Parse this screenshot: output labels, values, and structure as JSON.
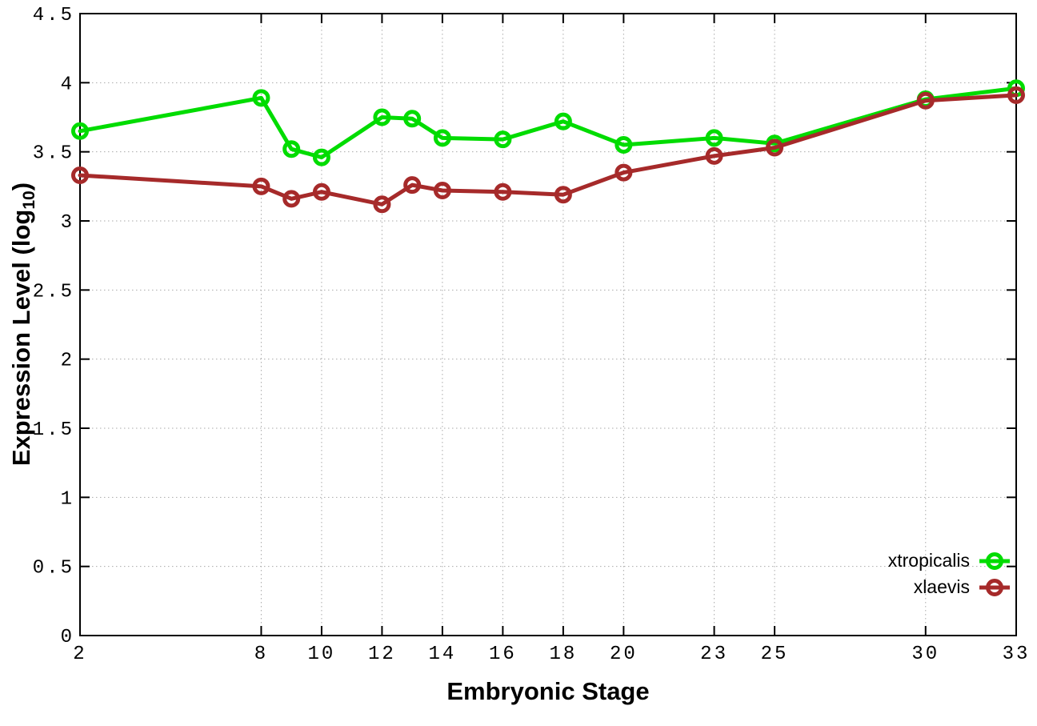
{
  "chart_data": {
    "type": "line",
    "title": "",
    "xlabel": "Embryonic Stage",
    "ylabel": "Expression Level (log10)",
    "ylabel_parts": {
      "main": "Expression Level (log",
      "sub": "10",
      "end": ")"
    },
    "xlim": [
      2,
      33
    ],
    "ylim": [
      0,
      4.5
    ],
    "grid": true,
    "legend_position": "inside-bottom-right",
    "x": [
      2,
      8,
      9,
      10,
      12,
      13,
      14,
      16,
      18,
      20,
      23,
      25,
      30,
      33
    ],
    "xticks": [
      2,
      8,
      10,
      12,
      14,
      16,
      18,
      20,
      23,
      25,
      30,
      33
    ],
    "xtick_labels": [
      "2",
      "8",
      "10",
      "12",
      "14",
      "16",
      "18",
      "20",
      "23",
      "25",
      "30",
      "33"
    ],
    "yticks": [
      0,
      0.5,
      1,
      1.5,
      2,
      2.5,
      3,
      3.5,
      4,
      4.5
    ],
    "ytick_labels": [
      "0",
      "0.5",
      "1",
      "1.5",
      "2",
      "2.5",
      "3",
      "3.5",
      "4",
      "4.5"
    ],
    "series": [
      {
        "name": "xtropicalis",
        "color": "#00DC00",
        "values": [
          3.65,
          3.89,
          3.52,
          3.46,
          3.75,
          3.74,
          3.6,
          3.59,
          3.72,
          3.55,
          3.6,
          3.56,
          3.88,
          3.96
        ]
      },
      {
        "name": "xlaevis",
        "color": "#A62A2A",
        "values": [
          3.33,
          3.25,
          3.16,
          3.21,
          3.12,
          3.26,
          3.22,
          3.21,
          3.19,
          3.35,
          3.47,
          3.53,
          3.87,
          3.91
        ]
      }
    ],
    "colors": {
      "background": "#ffffff",
      "border": "#000000",
      "grid": "#aaaaaa",
      "text": "#000000"
    }
  }
}
